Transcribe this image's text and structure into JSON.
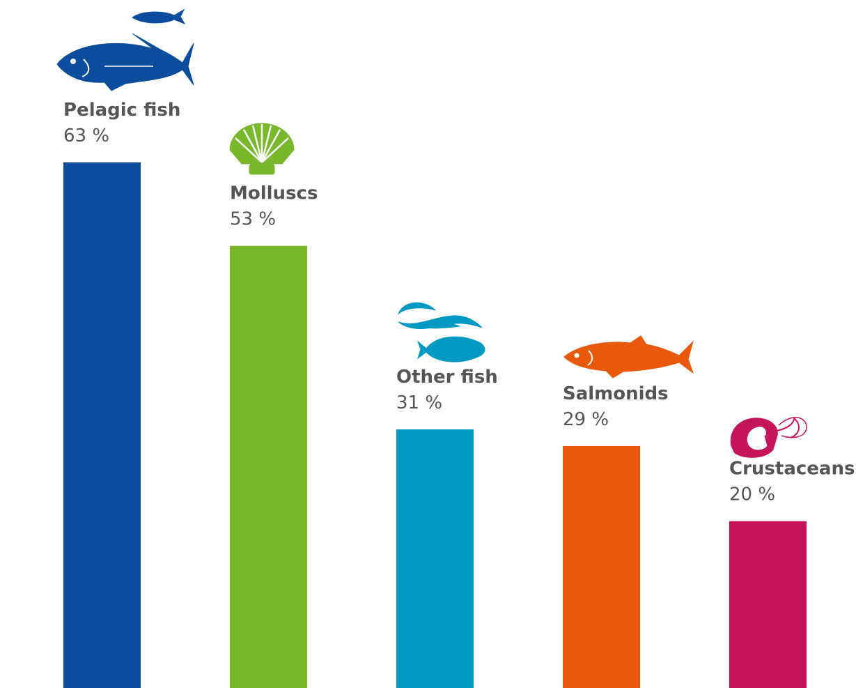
{
  "chart_data": {
    "type": "bar",
    "categories": [
      "Pelagic fish",
      "Molluscs",
      "Other fish",
      "Salmonids",
      "Crustaceans"
    ],
    "values": [
      63,
      53,
      31,
      29,
      20
    ],
    "value_labels": [
      "63 %",
      "53 %",
      "31 %",
      "29 %",
      "20 %"
    ],
    "colors": [
      "#0a4d9c",
      "#78b82a",
      "#0099c4",
      "#e8590c",
      "#c4145a"
    ],
    "icons": [
      "tuna-icon",
      "shell-icon",
      "fish-group-icon",
      "salmon-icon",
      "shrimp-icon"
    ],
    "ylim": [
      0,
      63
    ],
    "grid": false
  }
}
